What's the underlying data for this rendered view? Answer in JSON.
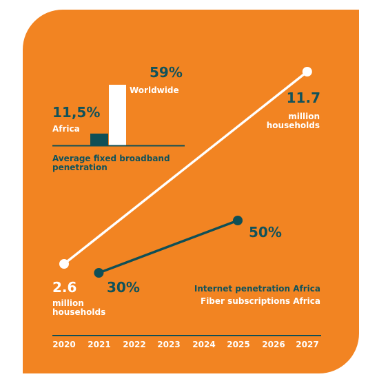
{
  "colors": {
    "background": "#f28422",
    "internet_line": "#ffffff",
    "fiber_line": "#0f4f56",
    "africa_bar": "#0f4f56",
    "worldwide_bar": "#ffffff",
    "text_dark": "#11525a"
  },
  "chart_data": [
    {
      "type": "bar",
      "title": "Average fixed broadband penetration",
      "categories": [
        "Africa",
        "Worldwide"
      ],
      "values": [
        11.5,
        59
      ],
      "value_labels": [
        "11,5%",
        "59%"
      ]
    },
    {
      "type": "line",
      "x": [
        2020,
        2021,
        2022,
        2023,
        2024,
        2025,
        2026,
        2027
      ],
      "tick_labels": [
        "2020",
        "2021",
        "2022",
        "2023",
        "2024",
        "2025",
        "2026",
        "2027"
      ],
      "series": [
        {
          "name": "Internet penetration Africa",
          "color": "#ffffff",
          "points": [
            {
              "x": 2020,
              "y": 2.6
            },
            {
              "x": 2027,
              "y": 11.7
            }
          ],
          "start_value": "2.6",
          "start_unit": "million households",
          "end_value": "11.7",
          "end_unit": "million households"
        },
        {
          "name": "Fiber subscriptions Africa",
          "color": "#0f4f56",
          "points": [
            {
              "x": 2021,
              "y": 30
            },
            {
              "x": 2025,
              "y": 50
            }
          ],
          "start_value": "30%",
          "end_value": "50%"
        }
      ]
    }
  ]
}
